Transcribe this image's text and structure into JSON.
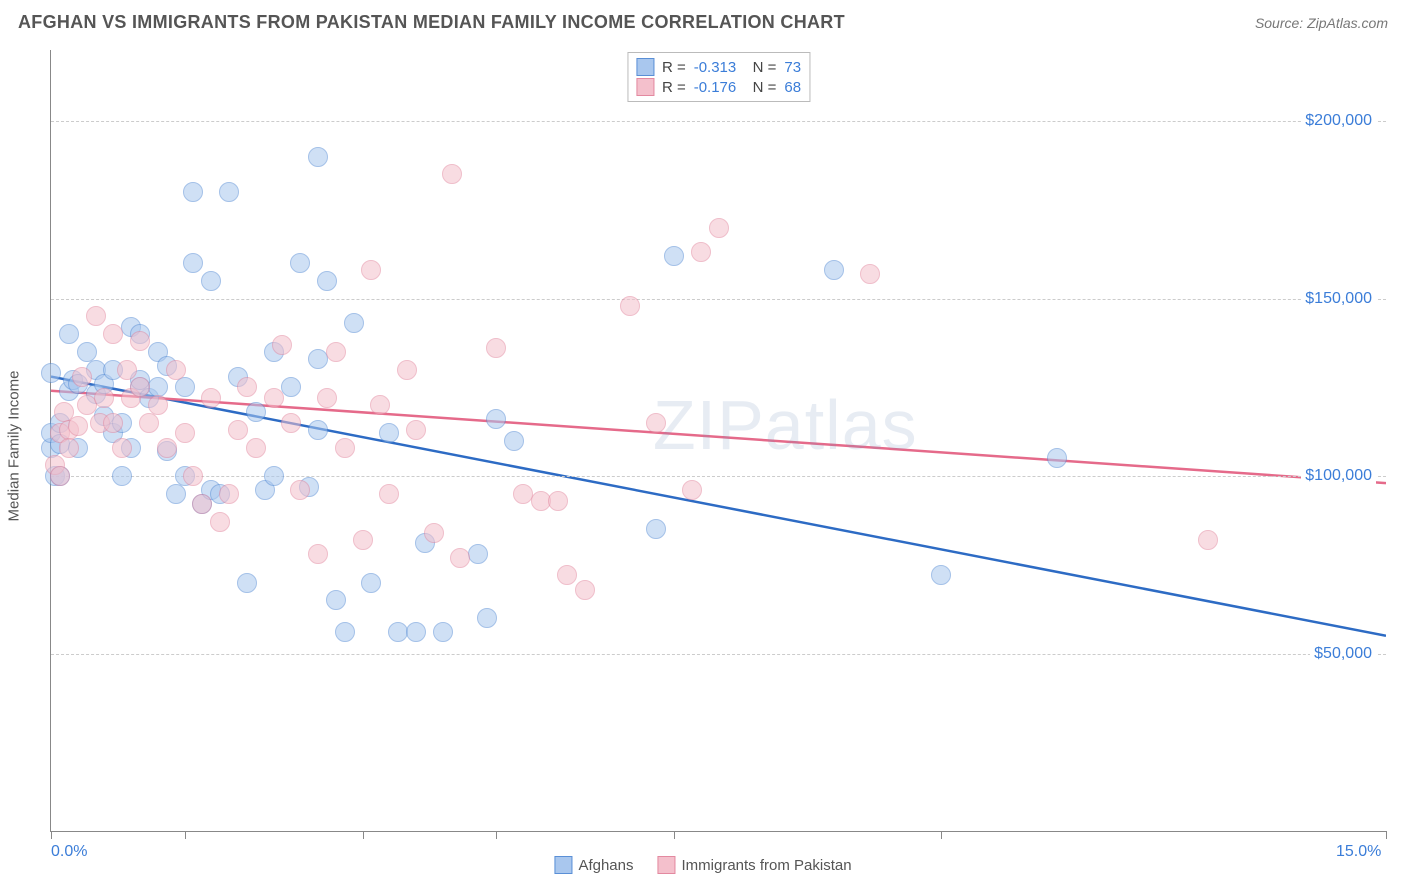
{
  "title": "AFGHAN VS IMMIGRANTS FROM PAKISTAN MEDIAN FAMILY INCOME CORRELATION CHART",
  "source_label": "Source: ZipAtlas.com",
  "ylabel": "Median Family Income",
  "watermark": "ZIPatlas",
  "chart": {
    "type": "scatter",
    "xlim": [
      0,
      15
    ],
    "ylim": [
      0,
      220000
    ],
    "x_ticks": [
      0,
      1.5,
      3.5,
      5.0,
      7.0,
      10.0,
      15.0
    ],
    "x_labels_shown": {
      "0": "0.0%",
      "15": "15.0%"
    },
    "y_gridlines": [
      50000,
      100000,
      150000,
      200000
    ],
    "y_labels": {
      "50000": "$50,000",
      "100000": "$100,000",
      "150000": "$150,000",
      "200000": "$200,000"
    },
    "grid_color": "#cccccc",
    "axis_color": "#888888",
    "background_color": "#ffffff",
    "label_color": "#3b7dd8",
    "point_radius": 10,
    "point_opacity": 0.55,
    "series": [
      {
        "name": "Afghans",
        "fill": "#a9c7ee",
        "stroke": "#5a8fd6",
        "line_color": "#2d6bc4",
        "line_width": 2.5,
        "r_value": "-0.313",
        "n_value": "73",
        "trend": {
          "x1": 0,
          "y1": 128000,
          "x2": 15,
          "y2": 55000
        },
        "points": [
          [
            0.0,
            129000
          ],
          [
            0.0,
            108000
          ],
          [
            0.0,
            112000
          ],
          [
            0.05,
            100000
          ],
          [
            0.1,
            100000
          ],
          [
            0.1,
            115000
          ],
          [
            0.1,
            109000
          ],
          [
            0.2,
            140000
          ],
          [
            0.2,
            124000
          ],
          [
            0.25,
            127000
          ],
          [
            0.3,
            126000
          ],
          [
            0.3,
            108000
          ],
          [
            0.4,
            135000
          ],
          [
            0.5,
            130000
          ],
          [
            0.5,
            123000
          ],
          [
            0.6,
            126000
          ],
          [
            0.6,
            117000
          ],
          [
            0.7,
            130000
          ],
          [
            0.7,
            112000
          ],
          [
            0.8,
            115000
          ],
          [
            0.8,
            100000
          ],
          [
            0.9,
            142000
          ],
          [
            0.9,
            108000
          ],
          [
            1.0,
            125000
          ],
          [
            1.0,
            127000
          ],
          [
            1.0,
            140000
          ],
          [
            1.1,
            122000
          ],
          [
            1.2,
            135000
          ],
          [
            1.2,
            125000
          ],
          [
            1.3,
            107000
          ],
          [
            1.3,
            131000
          ],
          [
            1.4,
            95000
          ],
          [
            1.5,
            125000
          ],
          [
            1.5,
            100000
          ],
          [
            1.6,
            180000
          ],
          [
            1.6,
            160000
          ],
          [
            1.7,
            92000
          ],
          [
            1.8,
            155000
          ],
          [
            1.8,
            96000
          ],
          [
            1.9,
            95000
          ],
          [
            2.0,
            180000
          ],
          [
            2.1,
            128000
          ],
          [
            2.2,
            70000
          ],
          [
            2.3,
            118000
          ],
          [
            2.4,
            96000
          ],
          [
            2.5,
            135000
          ],
          [
            2.5,
            100000
          ],
          [
            2.7,
            125000
          ],
          [
            2.8,
            160000
          ],
          [
            2.9,
            97000
          ],
          [
            3.0,
            190000
          ],
          [
            3.0,
            133000
          ],
          [
            3.0,
            113000
          ],
          [
            3.1,
            155000
          ],
          [
            3.2,
            65000
          ],
          [
            3.3,
            56000
          ],
          [
            3.4,
            143000
          ],
          [
            3.6,
            70000
          ],
          [
            3.8,
            112000
          ],
          [
            3.9,
            56000
          ],
          [
            4.1,
            56000
          ],
          [
            4.2,
            81000
          ],
          [
            4.4,
            56000
          ],
          [
            4.8,
            78000
          ],
          [
            4.9,
            60000
          ],
          [
            5.0,
            116000
          ],
          [
            5.2,
            110000
          ],
          [
            6.8,
            85000
          ],
          [
            7.0,
            162000
          ],
          [
            8.8,
            158000
          ],
          [
            10.0,
            72000
          ],
          [
            11.3,
            105000
          ]
        ]
      },
      {
        "name": "Immigrants from Pakistan",
        "fill": "#f4c0cc",
        "stroke": "#e389a0",
        "line_color": "#e56a8a",
        "line_width": 2.5,
        "r_value": "-0.176",
        "n_value": "68",
        "trend": {
          "x1": 0,
          "y1": 124000,
          "x2": 15,
          "y2": 98000
        },
        "points": [
          [
            0.05,
            103000
          ],
          [
            0.1,
            100000
          ],
          [
            0.1,
            112000
          ],
          [
            0.15,
            118000
          ],
          [
            0.2,
            113000
          ],
          [
            0.2,
            108000
          ],
          [
            0.3,
            114000
          ],
          [
            0.35,
            128000
          ],
          [
            0.4,
            120000
          ],
          [
            0.5,
            145000
          ],
          [
            0.55,
            115000
          ],
          [
            0.6,
            122000
          ],
          [
            0.7,
            115000
          ],
          [
            0.7,
            140000
          ],
          [
            0.8,
            108000
          ],
          [
            0.85,
            130000
          ],
          [
            0.9,
            122000
          ],
          [
            1.0,
            125000
          ],
          [
            1.0,
            138000
          ],
          [
            1.1,
            115000
          ],
          [
            1.2,
            120000
          ],
          [
            1.3,
            108000
          ],
          [
            1.4,
            130000
          ],
          [
            1.5,
            112000
          ],
          [
            1.6,
            100000
          ],
          [
            1.7,
            92000
          ],
          [
            1.8,
            122000
          ],
          [
            1.9,
            87000
          ],
          [
            2.0,
            95000
          ],
          [
            2.1,
            113000
          ],
          [
            2.2,
            125000
          ],
          [
            2.3,
            108000
          ],
          [
            2.5,
            122000
          ],
          [
            2.6,
            137000
          ],
          [
            2.7,
            115000
          ],
          [
            2.8,
            96000
          ],
          [
            3.0,
            78000
          ],
          [
            3.1,
            122000
          ],
          [
            3.2,
            135000
          ],
          [
            3.3,
            108000
          ],
          [
            3.5,
            82000
          ],
          [
            3.6,
            158000
          ],
          [
            3.7,
            120000
          ],
          [
            3.8,
            95000
          ],
          [
            4.0,
            130000
          ],
          [
            4.1,
            113000
          ],
          [
            4.3,
            84000
          ],
          [
            4.5,
            185000
          ],
          [
            4.6,
            77000
          ],
          [
            5.0,
            136000
          ],
          [
            5.3,
            95000
          ],
          [
            5.5,
            93000
          ],
          [
            5.7,
            93000
          ],
          [
            5.8,
            72000
          ],
          [
            6.0,
            68000
          ],
          [
            6.5,
            148000
          ],
          [
            6.8,
            115000
          ],
          [
            7.2,
            96000
          ],
          [
            7.3,
            163000
          ],
          [
            7.5,
            170000
          ],
          [
            9.2,
            157000
          ],
          [
            13.0,
            82000
          ]
        ]
      }
    ]
  },
  "legend_bottom": [
    {
      "label": "Afghans",
      "fill": "#a9c7ee",
      "stroke": "#5a8fd6"
    },
    {
      "label": "Immigrants from Pakistan",
      "fill": "#f4c0cc",
      "stroke": "#e389a0"
    }
  ]
}
